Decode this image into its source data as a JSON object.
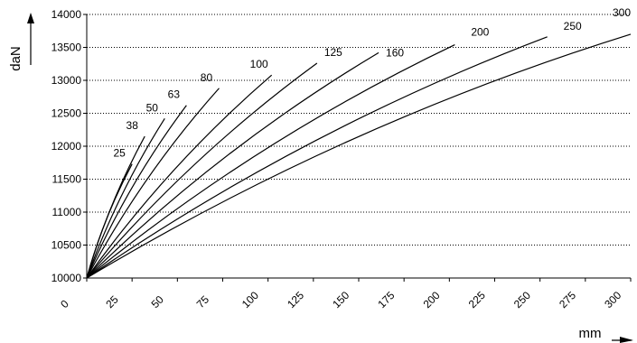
{
  "chart_data": {
    "type": "line",
    "title": "",
    "xlabel": "mm",
    "ylabel": "daN",
    "xlim": [
      0,
      300
    ],
    "ylim": [
      10000,
      14000
    ],
    "x_ticks": [
      0,
      25,
      50,
      75,
      100,
      125,
      150,
      175,
      200,
      225,
      250,
      275,
      300
    ],
    "y_ticks": [
      10000,
      10500,
      11000,
      11500,
      12000,
      12500,
      13000,
      13500,
      14000
    ],
    "grid": "horizontal-dotted",
    "legend": "inline-labels-at-curve-ends",
    "line_color": "#000000",
    "series": [
      {
        "name": "25",
        "end": [
          25,
          11730
        ],
        "shape": 0.055,
        "label_offset": [
          -14,
          2
        ]
      },
      {
        "name": "38",
        "end": [
          32,
          12150
        ],
        "shape": 0.055,
        "label_offset": [
          -14,
          2
        ]
      },
      {
        "name": "50",
        "end": [
          43,
          12420
        ],
        "shape": 0.055,
        "label_offset": [
          -14,
          2
        ]
      },
      {
        "name": "63",
        "end": [
          55,
          12620
        ],
        "shape": 0.06,
        "label_offset": [
          -14,
          2
        ]
      },
      {
        "name": "80",
        "end": [
          73,
          12880
        ],
        "shape": 0.06,
        "label_offset": [
          -14,
          2
        ]
      },
      {
        "name": "100",
        "end": [
          102,
          13080
        ],
        "shape": 0.06,
        "label_offset": [
          -14,
          2
        ]
      },
      {
        "name": "125",
        "end": [
          127,
          13260
        ],
        "shape": 0.06,
        "label_offset": [
          18,
          2
        ]
      },
      {
        "name": "160",
        "end": [
          161,
          13420
        ],
        "shape": 0.06,
        "label_offset": [
          18,
          14
        ]
      },
      {
        "name": "200",
        "end": [
          203,
          13540
        ],
        "shape": 0.06,
        "label_offset": [
          28,
          0
        ]
      },
      {
        "name": "250",
        "end": [
          254,
          13660
        ],
        "shape": 0.06,
        "label_offset": [
          28,
          2
        ]
      },
      {
        "name": "300",
        "end": [
          300,
          13700
        ],
        "shape": 0.06,
        "label_offset": [
          -10,
          -10
        ]
      }
    ]
  }
}
